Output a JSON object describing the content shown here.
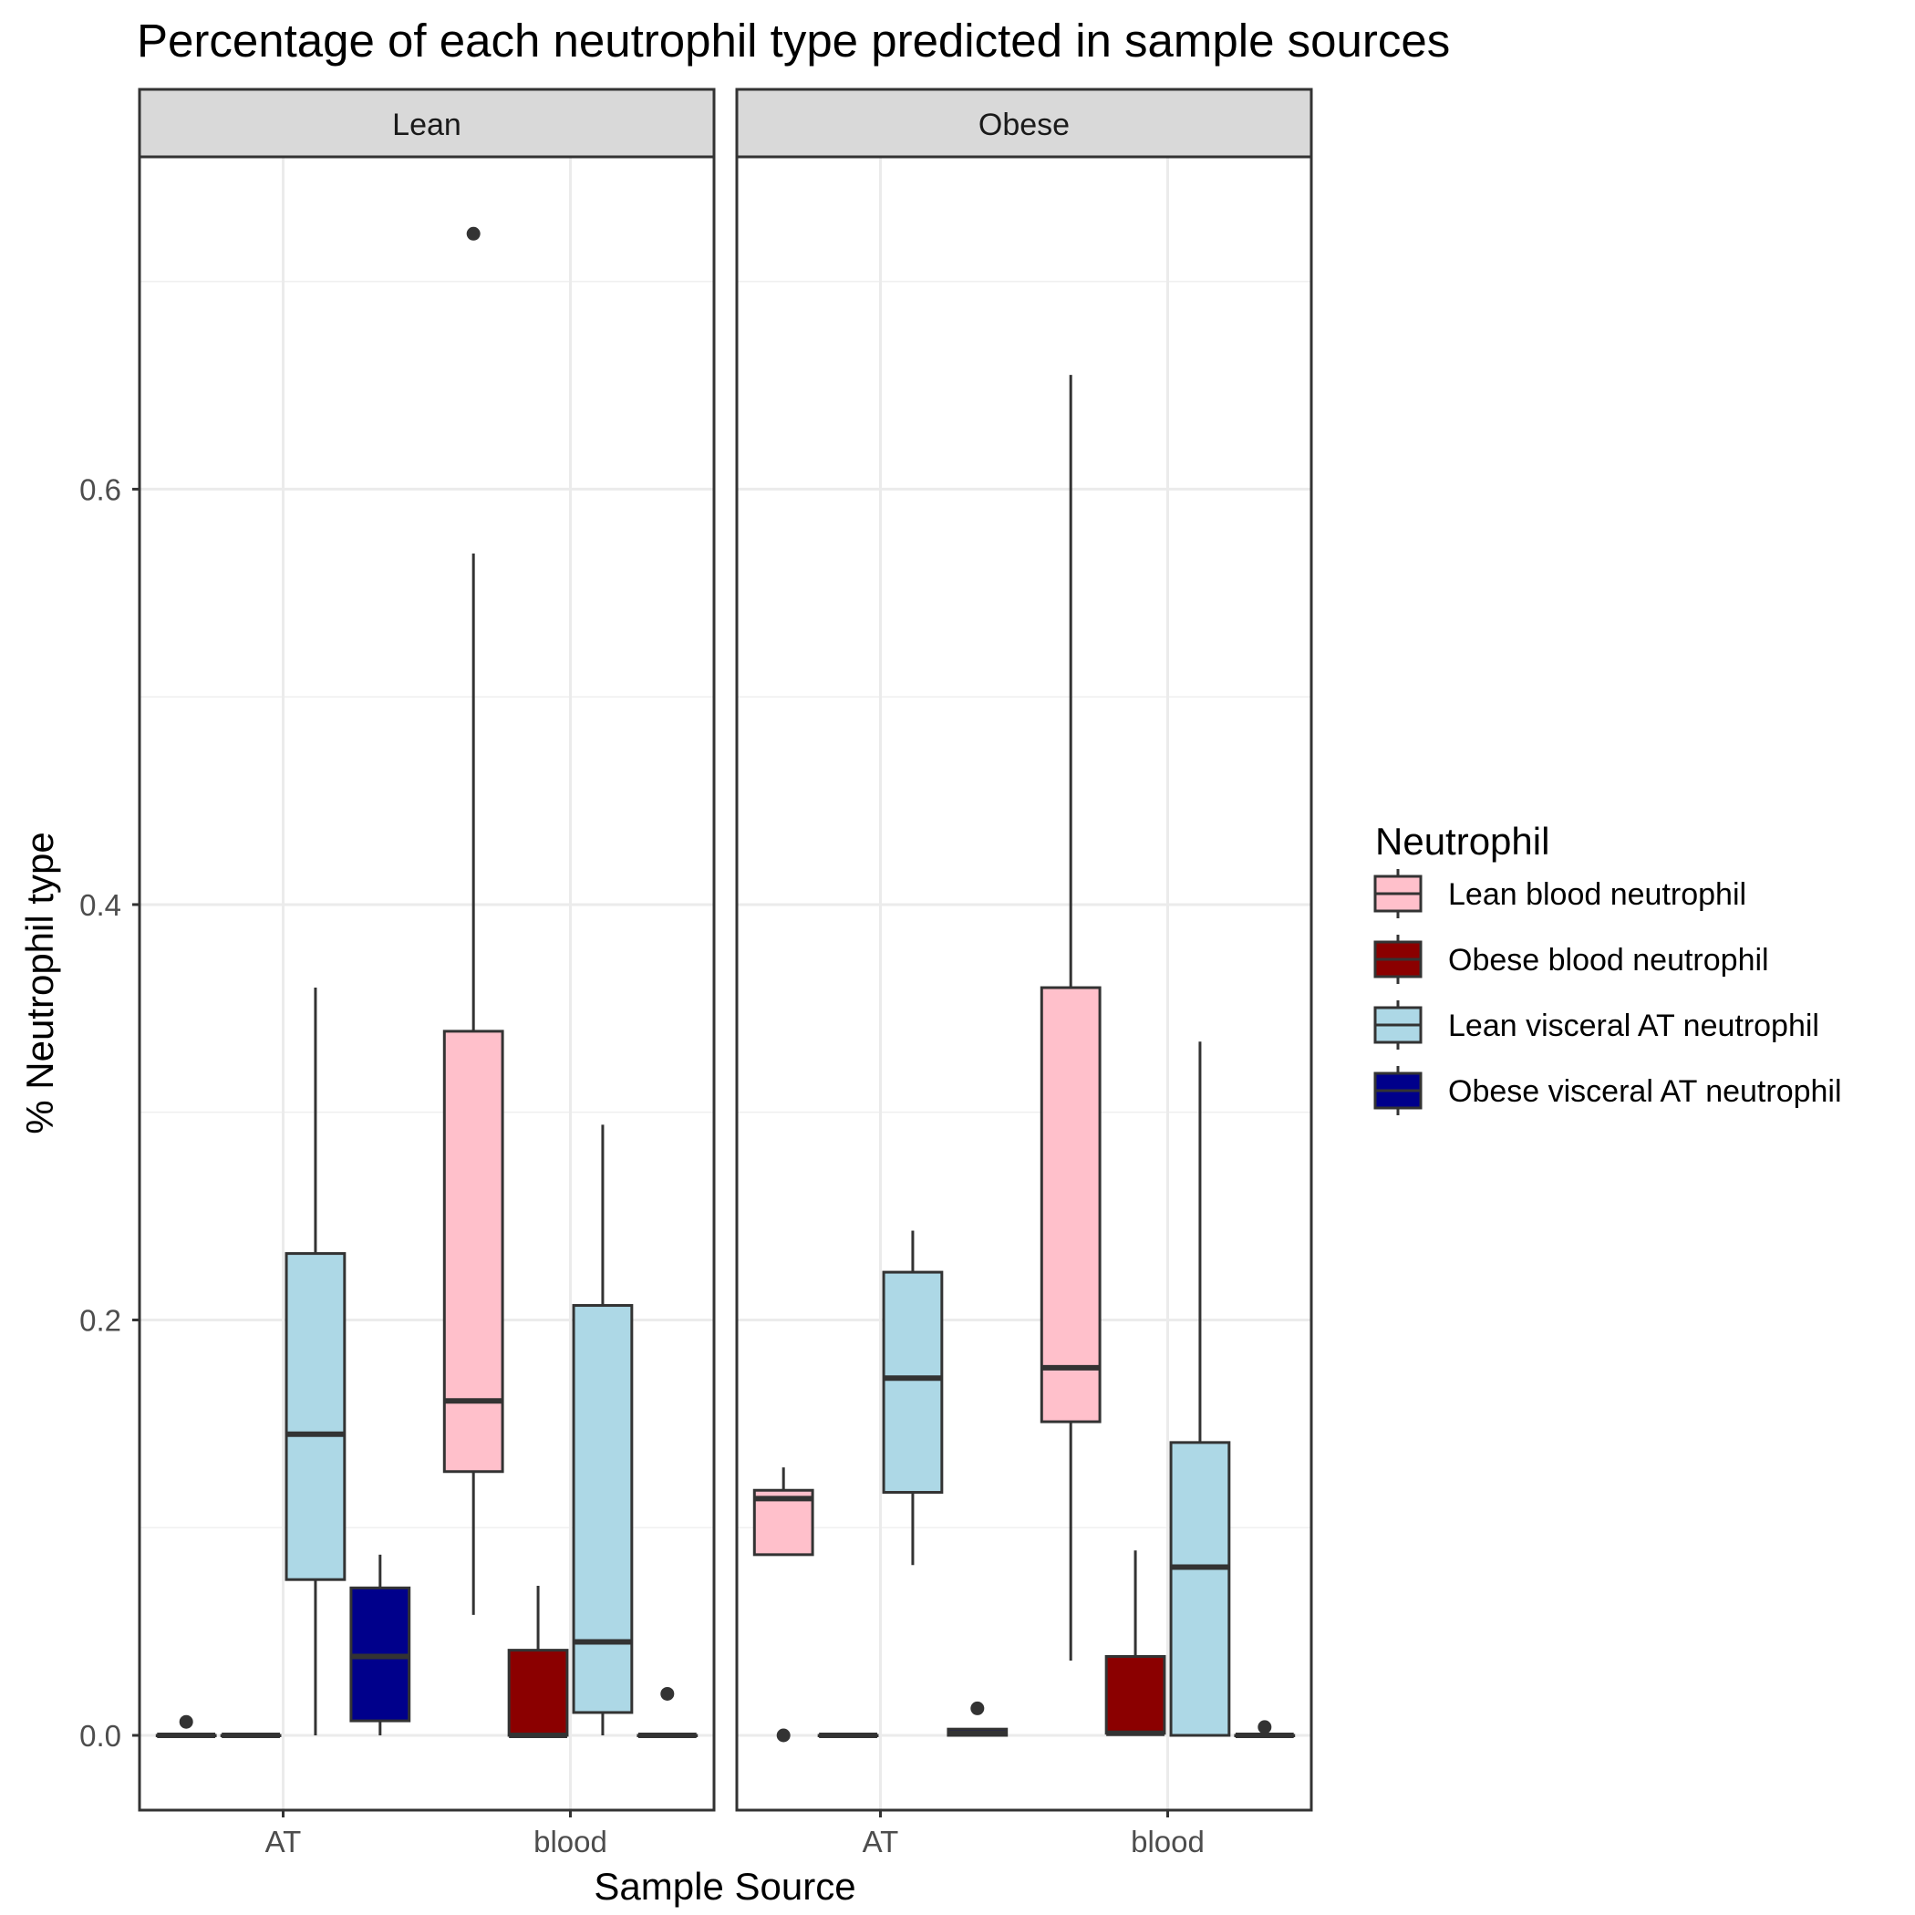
{
  "chart_data": {
    "type": "boxplot",
    "title": "Percentage of each neutrophil type predicted in sample sources",
    "xlabel": "Sample Source",
    "ylabel": "% Neutrophil type",
    "ylim": [
      -0.036,
      0.76
    ],
    "yticks": [
      0.0,
      0.2,
      0.4,
      0.6
    ],
    "ytick_labels": [
      "0.0",
      "0.2",
      "0.4",
      "0.6"
    ],
    "categories": [
      "AT",
      "blood"
    ],
    "grid": true,
    "legend": {
      "title": "Neutrophil",
      "position": "right",
      "items": [
        {
          "label": "Lean blood neutrophil",
          "color": "#FFC0CB"
        },
        {
          "label": "Obese blood neutrophil",
          "color": "#8B0000"
        },
        {
          "label": "Lean visceral AT neutrophil",
          "color": "#ADD8E6"
        },
        {
          "label": "Obese visceral AT neutrophil",
          "color": "#00008B"
        }
      ]
    },
    "panels": [
      {
        "strip": "Lean",
        "boxes": [
          {
            "category": "AT",
            "series": 0,
            "whisker_low": 0.0,
            "q1": 0.0,
            "median": 0.0,
            "q3": 0.0,
            "whisker_high": 0.0,
            "outliers": [
              0.0065
            ]
          },
          {
            "category": "AT",
            "series": 1,
            "whisker_low": 0.0,
            "q1": 0.0,
            "median": 0.0,
            "q3": 0.0,
            "whisker_high": 0.0,
            "outliers": []
          },
          {
            "category": "AT",
            "series": 2,
            "whisker_low": 0.0,
            "q1": 0.075,
            "median": 0.145,
            "q3": 0.232,
            "whisker_high": 0.36,
            "outliers": []
          },
          {
            "category": "AT",
            "series": 3,
            "whisker_low": 0.0,
            "q1": 0.007,
            "median": 0.038,
            "q3": 0.071,
            "whisker_high": 0.087,
            "outliers": []
          },
          {
            "category": "blood",
            "series": 0,
            "whisker_low": 0.058,
            "q1": 0.127,
            "median": 0.161,
            "q3": 0.339,
            "whisker_high": 0.569,
            "outliers": [
              0.723
            ]
          },
          {
            "category": "blood",
            "series": 1,
            "whisker_low": 0.0,
            "q1": 0.0,
            "median": 0.0,
            "q3": 0.041,
            "whisker_high": 0.072,
            "outliers": []
          },
          {
            "category": "blood",
            "series": 2,
            "whisker_low": 0.0,
            "q1": 0.011,
            "median": 0.045,
            "q3": 0.207,
            "whisker_high": 0.294,
            "outliers": []
          },
          {
            "category": "blood",
            "series": 3,
            "whisker_low": 0.0,
            "q1": 0.0,
            "median": 0.0,
            "q3": 0.0,
            "whisker_high": 0.0,
            "outliers": [
              0.02
            ]
          }
        ]
      },
      {
        "strip": "Obese",
        "boxes": [
          {
            "category": "AT",
            "series": 0,
            "whisker_low": 0.087,
            "q1": 0.087,
            "median": 0.114,
            "q3": 0.118,
            "whisker_high": 0.129,
            "outliers": [
              0.0
            ]
          },
          {
            "category": "AT",
            "series": 1,
            "whisker_low": 0.0,
            "q1": 0.0,
            "median": 0.0,
            "q3": 0.0,
            "whisker_high": 0.0,
            "outliers": []
          },
          {
            "category": "AT",
            "series": 2,
            "whisker_low": 0.082,
            "q1": 0.117,
            "median": 0.172,
            "q3": 0.223,
            "whisker_high": 0.243,
            "outliers": []
          },
          {
            "category": "AT",
            "series": 3,
            "whisker_low": 0.0,
            "q1": 0.0,
            "median": 0.001,
            "q3": 0.003,
            "whisker_high": 0.003,
            "outliers": [
              0.013
            ]
          },
          {
            "category": "blood",
            "series": 0,
            "whisker_low": 0.036,
            "q1": 0.151,
            "median": 0.177,
            "q3": 0.36,
            "whisker_high": 0.655,
            "outliers": []
          },
          {
            "category": "blood",
            "series": 1,
            "whisker_low": 0.0,
            "q1": 0.001,
            "median": 0.001,
            "q3": 0.038,
            "whisker_high": 0.089,
            "outliers": []
          },
          {
            "category": "blood",
            "series": 2,
            "whisker_low": 0.0,
            "q1": 0.0,
            "median": 0.081,
            "q3": 0.141,
            "whisker_high": 0.334,
            "outliers": []
          },
          {
            "category": "blood",
            "series": 3,
            "whisker_low": 0.0,
            "q1": 0.0,
            "median": 0.0,
            "q3": 0.0,
            "whisker_high": 0.0,
            "outliers": [
              0.004
            ]
          }
        ]
      }
    ]
  }
}
